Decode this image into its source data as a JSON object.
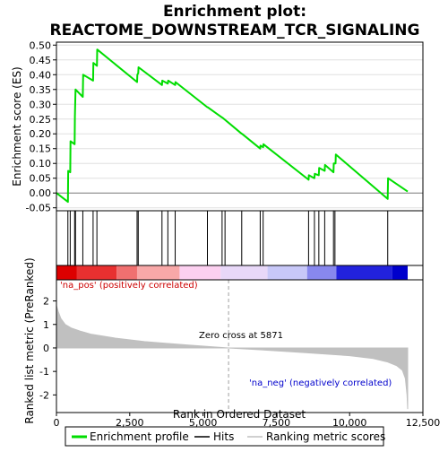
{
  "chart_data": {
    "type": "line",
    "title": "Enrichment plot:",
    "subtitle": "REACTOME_DOWNSTREAM_TCR_SIGNALING",
    "xlabel": "Rank in Ordered Dataset",
    "es_panel": {
      "ylabel": "Enrichment score (ES)",
      "ylim": [
        -0.06,
        0.51
      ],
      "yticks": [
        -0.05,
        0.0,
        0.05,
        0.1,
        0.15,
        0.2,
        0.25,
        0.3,
        0.35,
        0.4,
        0.45,
        0.5
      ],
      "ytick_labels": [
        "-0.05",
        "0.00",
        "0.05",
        "0.10",
        "0.15",
        "0.20",
        "0.25",
        "0.30",
        "0.35",
        "0.40",
        "0.45",
        "0.50"
      ],
      "grid": true,
      "series": [
        {
          "name": "Enrichment profile",
          "color": "#00dd00",
          "x": [
            0,
            390,
            400,
            470,
            480,
            620,
            630,
            650,
            900,
            910,
            1250,
            1260,
            1380,
            1390,
            2750,
            2760,
            2790,
            2800,
            3600,
            3610,
            3800,
            3810,
            4050,
            4060,
            5150,
            5160,
            5650,
            5660,
            6320,
            6330,
            6950,
            6960,
            7050,
            7060,
            8600,
            8610,
            8800,
            8810,
            8950,
            8960,
            9150,
            9160,
            9450,
            9460,
            9520,
            9530,
            11300,
            11310,
            11980
          ],
          "y": [
            0.0,
            -0.03,
            0.075,
            0.07,
            0.175,
            0.165,
            0.26,
            0.35,
            0.325,
            0.4,
            0.38,
            0.44,
            0.43,
            0.485,
            0.375,
            0.4,
            0.405,
            0.425,
            0.365,
            0.38,
            0.37,
            0.38,
            0.365,
            0.375,
            0.29,
            0.29,
            0.255,
            0.255,
            0.2,
            0.2,
            0.15,
            0.16,
            0.155,
            0.165,
            0.045,
            0.06,
            0.05,
            0.065,
            0.06,
            0.085,
            0.075,
            0.095,
            0.07,
            0.1,
            0.1,
            0.13,
            -0.02,
            0.05,
            0.005
          ]
        }
      ]
    },
    "hits": {
      "name": "Hits",
      "color": "#000000",
      "x": [
        390,
        470,
        620,
        650,
        900,
        1250,
        1380,
        2750,
        2790,
        3600,
        3800,
        4050,
        5150,
        5650,
        5750,
        6320,
        6950,
        7050,
        8600,
        8800,
        8950,
        9150,
        9450,
        9500,
        11300
      ]
    },
    "heat_bar": {
      "colors_left_to_right": [
        "#dd0000",
        "#e83030",
        "#f07070",
        "#f8a8a8",
        "#fcd0f0",
        "#e8d8f8",
        "#c8c8f8",
        "#8888ee",
        "#2222dd",
        "#0000cc"
      ],
      "breaks": [
        0,
        700,
        2050,
        2750,
        4200,
        5600,
        7200,
        8550,
        9550,
        11450,
        11980
      ]
    },
    "ranked_panel": {
      "ylabel": "Ranked list metric (PreRanked)",
      "ylim": [
        -2.75,
        2.9
      ],
      "yticks": [
        -2,
        -1,
        0,
        1,
        2
      ],
      "ytick_labels": [
        "-2",
        "-1",
        "0",
        "1",
        "2"
      ],
      "series": [
        {
          "name": "Ranking metric scores",
          "color": "#c0c0c0",
          "x": [
            0,
            60,
            150,
            300,
            500,
            800,
            1200,
            2000,
            3000,
            4500,
            5871,
            7000,
            8500,
            10000,
            10800,
            11300,
            11600,
            11800,
            11900,
            11960,
            11980
          ],
          "y": [
            1.8,
            1.55,
            1.25,
            1.0,
            0.85,
            0.72,
            0.58,
            0.42,
            0.27,
            0.12,
            0.0,
            -0.08,
            -0.2,
            -0.33,
            -0.45,
            -0.6,
            -0.75,
            -0.95,
            -1.3,
            -2.0,
            -2.6
          ]
        }
      ],
      "zero_cross_label": "Zero cross at 5871",
      "zero_cross_x": 5871,
      "na_pos_label": "'na_pos' (positively correlated)",
      "na_neg_label": "'na_neg' (negatively correlated)",
      "na_pos_color": "#cc0000",
      "na_neg_color": "#0000cc"
    },
    "xlim": [
      0,
      12500
    ],
    "xticks": [
      0,
      2500,
      5000,
      7500,
      10000,
      12500
    ],
    "xtick_labels": [
      "0",
      "2,500",
      "5,000",
      "7,500",
      "10,000",
      "12,500"
    ],
    "legend": {
      "placement": "bottom",
      "items": [
        {
          "label": "Enrichment profile",
          "color": "#00dd00",
          "kind": "line-thick"
        },
        {
          "label": "Hits",
          "color": "#000000",
          "kind": "line"
        },
        {
          "label": "Ranking metric scores",
          "color": "#c0c0c0",
          "kind": "line"
        }
      ]
    }
  }
}
